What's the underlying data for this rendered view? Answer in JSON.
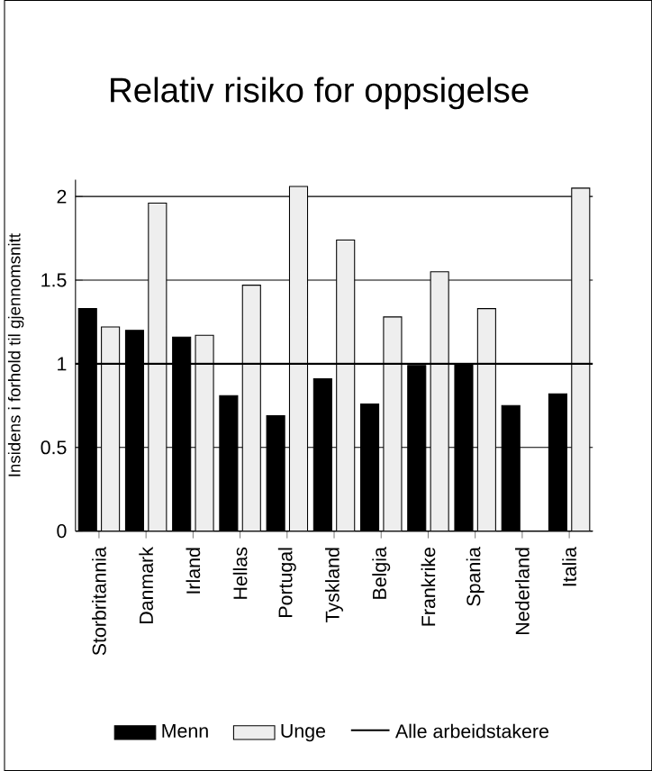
{
  "chart_data": {
    "type": "bar",
    "title": "Relativ risiko for oppsigelse",
    "ylabel": "Insidens i forhold til gjennomsnitt",
    "categories": [
      "Storbritannia",
      "Danmark",
      "Irland",
      "Hellas",
      "Portugal",
      "Tyskland",
      "Belgia",
      "Frankrike",
      "Spania",
      "Nederland",
      "Italia"
    ],
    "series": [
      {
        "name": "Menn",
        "color": "#000000",
        "values": [
          1.33,
          1.2,
          1.16,
          0.81,
          0.69,
          0.91,
          0.76,
          0.99,
          1.0,
          0.75,
          0.82
        ]
      },
      {
        "name": "Unge",
        "color": "#eeeeee",
        "values": [
          1.22,
          1.96,
          1.17,
          1.47,
          2.06,
          1.74,
          1.28,
          1.55,
          1.33,
          null,
          2.05
        ]
      }
    ],
    "ylim": [
      0,
      2.1
    ],
    "yticks": [
      0,
      0.5,
      1,
      1.5,
      2
    ],
    "grid": "y",
    "legend": "bottom",
    "ref_lines": [
      {
        "axis": "y",
        "value": 1,
        "label": "Alle arbeidstakere",
        "color": "#000000"
      }
    ]
  }
}
